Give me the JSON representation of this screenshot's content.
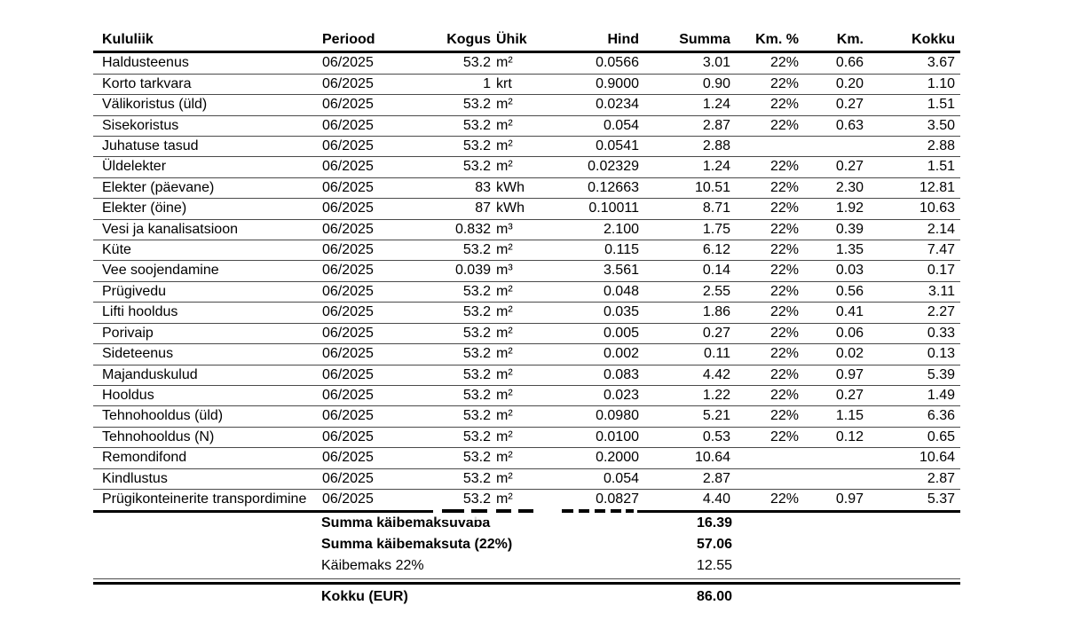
{
  "table": {
    "columns": [
      {
        "key": "kululiik",
        "label": "Kululiik"
      },
      {
        "key": "periood",
        "label": "Periood"
      },
      {
        "key": "kogus",
        "label": "Kogus"
      },
      {
        "key": "yhik",
        "label": "Ühik"
      },
      {
        "key": "hind",
        "label": "Hind"
      },
      {
        "key": "summa",
        "label": "Summa"
      },
      {
        "key": "km_pct",
        "label": "Km. %"
      },
      {
        "key": "km",
        "label": "Km."
      },
      {
        "key": "kokku",
        "label": "Kokku"
      }
    ],
    "rows": [
      {
        "kululiik": "Haldusteenus",
        "periood": "06/2025",
        "kogus": "53.2",
        "yhik": "m²",
        "hind": "0.0566",
        "summa": "3.01",
        "km_pct": "22%",
        "km": "0.66",
        "kokku": "3.67"
      },
      {
        "kululiik": "Korto tarkvara",
        "periood": "06/2025",
        "kogus": "1",
        "yhik": "krt",
        "hind": "0.9000",
        "summa": "0.90",
        "km_pct": "22%",
        "km": "0.20",
        "kokku": "1.10"
      },
      {
        "kululiik": "Välikoristus (üld)",
        "periood": "06/2025",
        "kogus": "53.2",
        "yhik": "m²",
        "hind": "0.0234",
        "summa": "1.24",
        "km_pct": "22%",
        "km": "0.27",
        "kokku": "1.51"
      },
      {
        "kululiik": "Sisekoristus",
        "periood": "06/2025",
        "kogus": "53.2",
        "yhik": "m²",
        "hind": "0.054",
        "summa": "2.87",
        "km_pct": "22%",
        "km": "0.63",
        "kokku": "3.50"
      },
      {
        "kululiik": "Juhatuse tasud",
        "periood": "06/2025",
        "kogus": "53.2",
        "yhik": "m²",
        "hind": "0.0541",
        "summa": "2.88",
        "km_pct": "",
        "km": "",
        "kokku": "2.88"
      },
      {
        "kululiik": "Üldelekter",
        "periood": "06/2025",
        "kogus": "53.2",
        "yhik": "m²",
        "hind": "0.02329",
        "summa": "1.24",
        "km_pct": "22%",
        "km": "0.27",
        "kokku": "1.51"
      },
      {
        "kululiik": "Elekter (päevane)",
        "periood": "06/2025",
        "kogus": "83",
        "yhik": "kWh",
        "hind": "0.12663",
        "summa": "10.51",
        "km_pct": "22%",
        "km": "2.30",
        "kokku": "12.81"
      },
      {
        "kululiik": "Elekter (öine)",
        "periood": "06/2025",
        "kogus": "87",
        "yhik": "kWh",
        "hind": "0.10011",
        "summa": "8.71",
        "km_pct": "22%",
        "km": "1.92",
        "kokku": "10.63"
      },
      {
        "kululiik": "Vesi ja kanalisatsioon",
        "periood": "06/2025",
        "kogus": "0.832",
        "yhik": "m³",
        "hind": "2.100",
        "summa": "1.75",
        "km_pct": "22%",
        "km": "0.39",
        "kokku": "2.14"
      },
      {
        "kululiik": "Küte",
        "periood": "06/2025",
        "kogus": "53.2",
        "yhik": "m²",
        "hind": "0.115",
        "summa": "6.12",
        "km_pct": "22%",
        "km": "1.35",
        "kokku": "7.47"
      },
      {
        "kululiik": "Vee soojendamine",
        "periood": "06/2025",
        "kogus": "0.039",
        "yhik": "m³",
        "hind": "3.561",
        "summa": "0.14",
        "km_pct": "22%",
        "km": "0.03",
        "kokku": "0.17"
      },
      {
        "kululiik": "Prügivedu",
        "periood": "06/2025",
        "kogus": "53.2",
        "yhik": "m²",
        "hind": "0.048",
        "summa": "2.55",
        "km_pct": "22%",
        "km": "0.56",
        "kokku": "3.11"
      },
      {
        "kululiik": "Lifti hooldus",
        "periood": "06/2025",
        "kogus": "53.2",
        "yhik": "m²",
        "hind": "0.035",
        "summa": "1.86",
        "km_pct": "22%",
        "km": "0.41",
        "kokku": "2.27"
      },
      {
        "kululiik": "Porivaip",
        "periood": "06/2025",
        "kogus": "53.2",
        "yhik": "m²",
        "hind": "0.005",
        "summa": "0.27",
        "km_pct": "22%",
        "km": "0.06",
        "kokku": "0.33"
      },
      {
        "kululiik": "Sideteenus",
        "periood": "06/2025",
        "kogus": "53.2",
        "yhik": "m²",
        "hind": "0.002",
        "summa": "0.11",
        "km_pct": "22%",
        "km": "0.02",
        "kokku": "0.13"
      },
      {
        "kululiik": "Majanduskulud",
        "periood": "06/2025",
        "kogus": "53.2",
        "yhik": "m²",
        "hind": "0.083",
        "summa": "4.42",
        "km_pct": "22%",
        "km": "0.97",
        "kokku": "5.39"
      },
      {
        "kululiik": "Hooldus",
        "periood": "06/2025",
        "kogus": "53.2",
        "yhik": "m²",
        "hind": "0.023",
        "summa": "1.22",
        "km_pct": "22%",
        "km": "0.27",
        "kokku": "1.49"
      },
      {
        "kululiik": "Tehnohooldus (üld)",
        "periood": "06/2025",
        "kogus": "53.2",
        "yhik": "m²",
        "hind": "0.0980",
        "summa": "5.21",
        "km_pct": "22%",
        "km": "1.15",
        "kokku": "6.36"
      },
      {
        "kululiik": "Tehnohooldus (N)",
        "periood": "06/2025",
        "kogus": "53.2",
        "yhik": "m²",
        "hind": "0.0100",
        "summa": "0.53",
        "km_pct": "22%",
        "km": "0.12",
        "kokku": "0.65"
      },
      {
        "kululiik": "Remondifond",
        "periood": "06/2025",
        "kogus": "53.2",
        "yhik": "m²",
        "hind": "0.2000",
        "summa": "10.64",
        "km_pct": "",
        "km": "",
        "kokku": "10.64"
      },
      {
        "kululiik": "Kindlustus",
        "periood": "06/2025",
        "kogus": "53.2",
        "yhik": "m²",
        "hind": "0.054",
        "summa": "2.87",
        "km_pct": "",
        "km": "",
        "kokku": "2.87"
      },
      {
        "kululiik": "Prügikonteinerite transpordimine",
        "periood": "06/2025",
        "kogus": "53.2",
        "yhik": "m²",
        "hind": "0.0827",
        "summa": "4.40",
        "km_pct": "22%",
        "km": "0.97",
        "kokku": "5.37"
      }
    ],
    "summary": [
      {
        "label": "Summa käibemaksuvaba",
        "value": "16.39",
        "bold": true
      },
      {
        "label": "Summa käibemaksuta (22%)",
        "value": "57.06",
        "bold": true
      },
      {
        "label": "Käibemaks 22%",
        "value": "12.55",
        "bold": false
      }
    ],
    "total": {
      "label": "Kokku (EUR)",
      "value": "86.00"
    }
  },
  "colors": {
    "text": "#000000",
    "row_separator": "#4a4a4a",
    "rule": "#000000",
    "background": "#ffffff"
  }
}
